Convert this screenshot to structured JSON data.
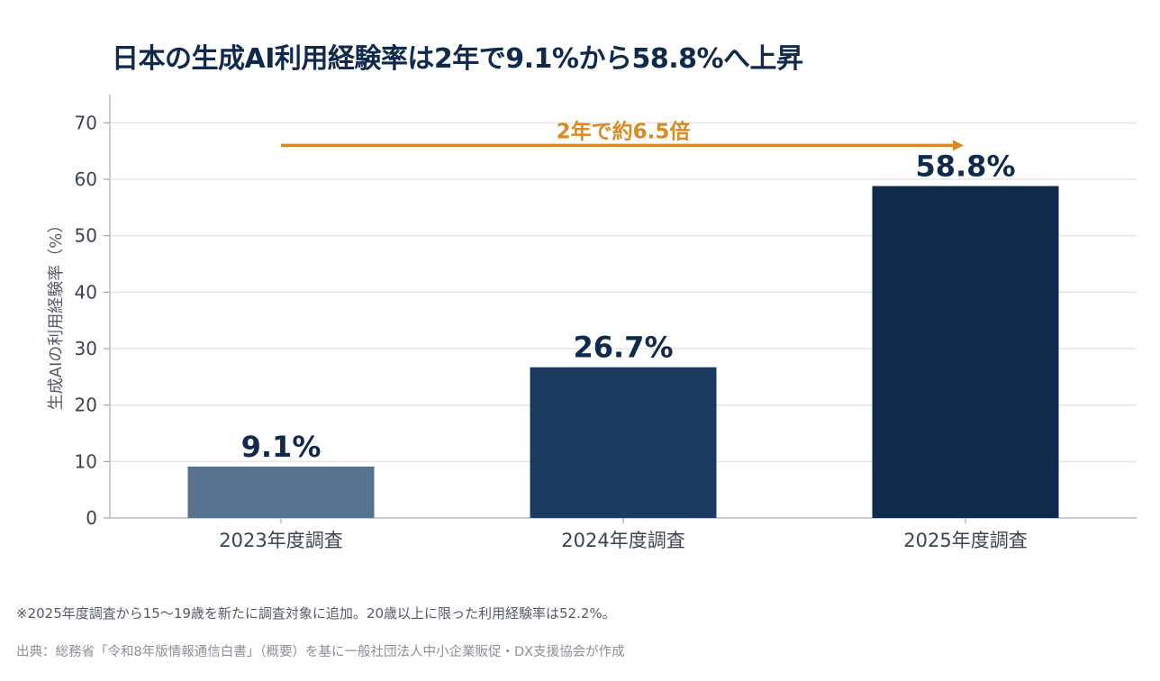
{
  "title": "日本の生成AI利用経験率は2年で9.1%から58.8%へ上昇",
  "chart_data": {
    "type": "bar",
    "categories": [
      "2023年度調査",
      "2024年度調査",
      "2025年度調査"
    ],
    "values": [
      9.1,
      26.7,
      58.8
    ],
    "data_labels": [
      "9.1%",
      "26.7%",
      "58.8%"
    ],
    "bar_colors": [
      "#56728c",
      "#1b3a5f",
      "#0f2a4d"
    ],
    "ylabel": "生成AIの利用経験率（%）",
    "ylim": [
      0,
      75
    ],
    "yticks": [
      0,
      10,
      20,
      30,
      40,
      50,
      60,
      70
    ],
    "grid": true,
    "annotation": {
      "text": "2年で約6.5倍",
      "from_category": 0,
      "to_category": 2,
      "y_value": 66,
      "color": "#d98a22"
    }
  },
  "footnote": "※2025年度調査から15〜19歳を新たに調査対象に追加。20歳以上に限った利用経験率は52.2%。",
  "source": "出典：総務省「令和8年版情報通信白書」（概要）を基に一般社団法人中小企業販促・DX支援協会が作成"
}
